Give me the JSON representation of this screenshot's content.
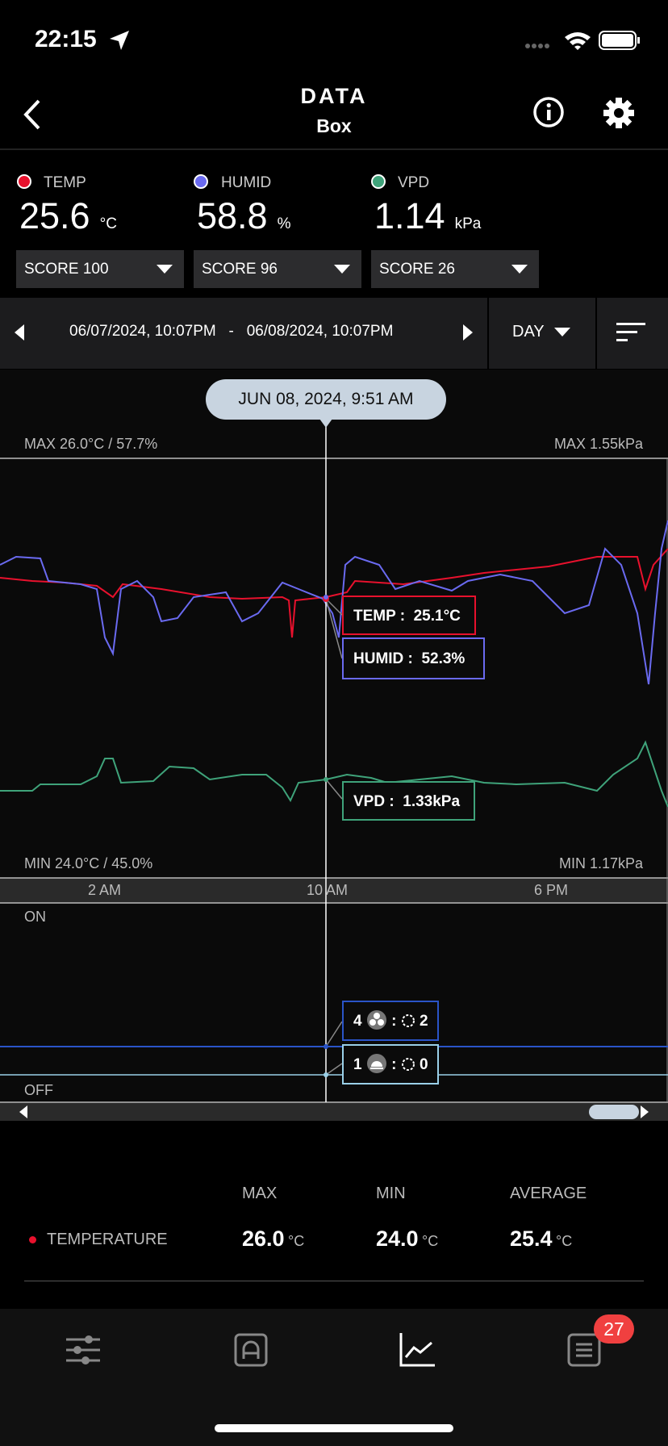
{
  "status": {
    "time": "22:15"
  },
  "header": {
    "title": "DATA",
    "subtitle": "Box"
  },
  "sensors": [
    {
      "label": "TEMP",
      "value": "25.6",
      "unit": "°C",
      "score": "SCORE 100"
    },
    {
      "label": "HUMID",
      "value": "58.8",
      "unit": "%",
      "score": "SCORE 96"
    },
    {
      "label": "VPD",
      "value": "1.14",
      "unit": "kPa",
      "score": "SCORE 26"
    }
  ],
  "date_range": {
    "start": "06/07/2024, 10:07PM",
    "separator": "-",
    "end": "06/08/2024, 10:07PM",
    "period": "DAY"
  },
  "chart": {
    "tooltip": "JUN 08, 2024, 9:51 AM",
    "max_left": "MAX 26.0°C / 57.7%",
    "max_right": "MAX 1.55kPa",
    "min_left": "MIN 24.0°C / 45.0%",
    "min_right": "MIN 1.17kPa",
    "callouts": [
      {
        "label": "TEMP :",
        "value": "25.1°C"
      },
      {
        "label": "HUMID :",
        "value": "52.3%"
      },
      {
        "label": "VPD :",
        "value": "1.33kPa"
      }
    ],
    "x_labels": [
      "2 AM",
      "10 AM",
      "6 PM"
    ],
    "on": "ON",
    "off": "OFF",
    "devices": [
      {
        "count": "4",
        "value": "2"
      },
      {
        "count": "1",
        "value": "0"
      }
    ]
  },
  "stats": {
    "headers": [
      "MAX",
      "MIN",
      "AVERAGE"
    ],
    "rows": [
      {
        "name": "TEMPERATURE",
        "values": [
          "26.0",
          "24.0",
          "25.4"
        ],
        "unit": "°C"
      }
    ]
  },
  "badge": "27"
}
